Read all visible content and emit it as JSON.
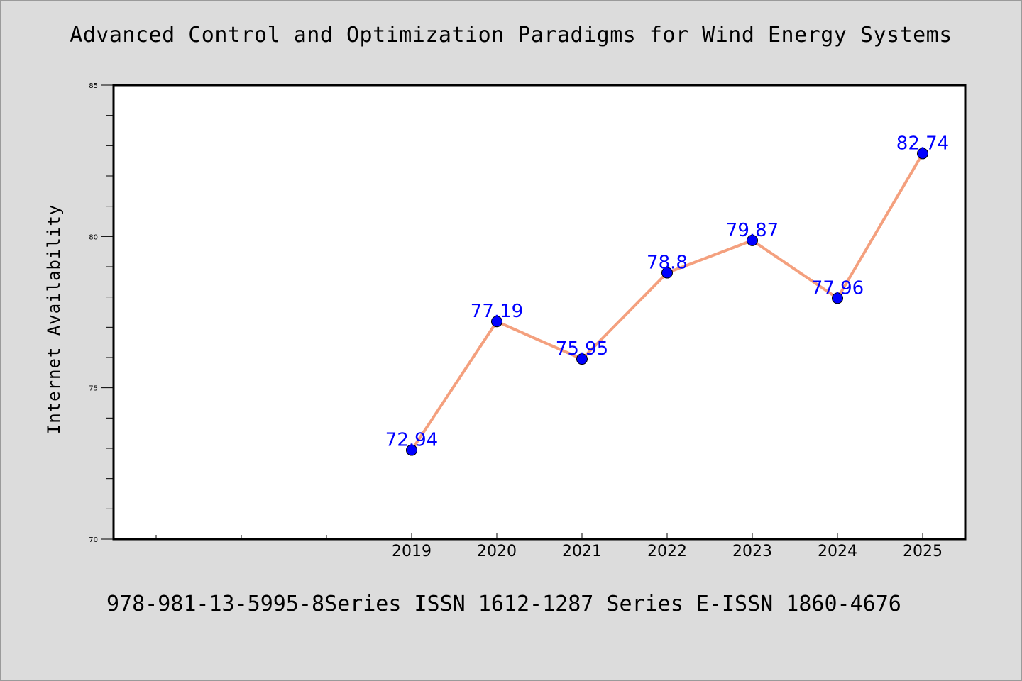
{
  "footer": "978-981-13-5995-8Series ISSN 1612-1287 Series E-ISSN 1860-4676",
  "chart_data": {
    "type": "line",
    "title": "Advanced Control and Optimization Paradigms for Wind Energy Systems",
    "xlabel": "",
    "ylabel": "Internet Availability",
    "categories": [
      "2019",
      "2020",
      "2021",
      "2022",
      "2023",
      "2024",
      "2025"
    ],
    "series": [
      {
        "values": [
          72.94,
          77.19,
          75.95,
          78.8,
          79.87,
          77.96,
          82.74
        ]
      }
    ],
    "data_labels": [
      "72.94",
      "77.19",
      "75.95",
      "78.8",
      "79.87",
      "77.96",
      "82.74"
    ],
    "ylim": [
      70,
      85
    ],
    "yticks": [
      70,
      75,
      80,
      85
    ],
    "grid": false,
    "legend": "none",
    "colors": {
      "line": "#f4a07e",
      "marker": "#0000ff",
      "label": "#0000ff",
      "background": "#dcdcdc",
      "plot_background": "#ffffff"
    }
  }
}
